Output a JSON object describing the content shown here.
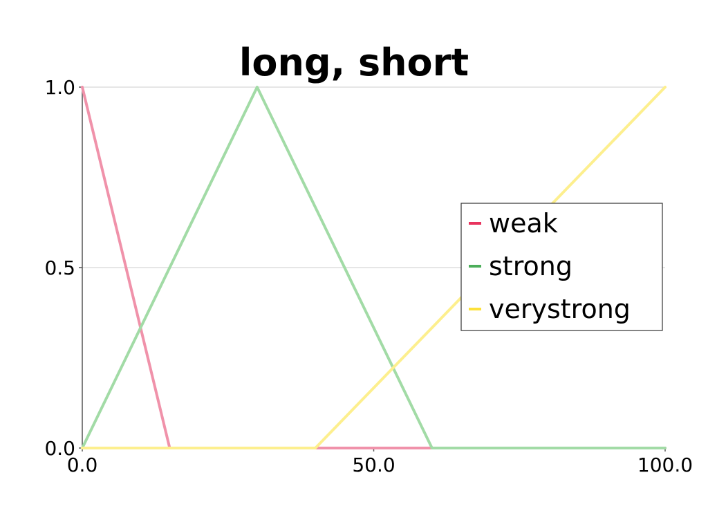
{
  "chart_data": {
    "type": "line",
    "title": "long, short",
    "xlabel": "",
    "ylabel": "",
    "xlim": [
      0,
      100
    ],
    "ylim": [
      0,
      1
    ],
    "x_ticks": [
      0,
      50,
      100
    ],
    "x_tick_labels": [
      "0.0",
      "50.0",
      "100.0"
    ],
    "y_ticks": [
      0,
      0.5,
      1
    ],
    "y_tick_labels": [
      "0.0",
      "0.5",
      "1.0"
    ],
    "grid": "horizontal",
    "legend": "right",
    "series": [
      {
        "name": "weak",
        "color": "#e8335e",
        "line_color": "#f092aa",
        "x": [
          0,
          15,
          100
        ],
        "y": [
          1,
          0,
          0
        ]
      },
      {
        "name": "strong",
        "color": "#4cae5a",
        "line_color": "#a2dba6",
        "x": [
          0,
          30,
          60,
          100
        ],
        "y": [
          0,
          1,
          0,
          0
        ]
      },
      {
        "name": "verystrong",
        "color": "#fde13a",
        "line_color": "#fdef8e",
        "x": [
          0,
          40,
          100
        ],
        "y": [
          0,
          0,
          1
        ]
      }
    ]
  }
}
